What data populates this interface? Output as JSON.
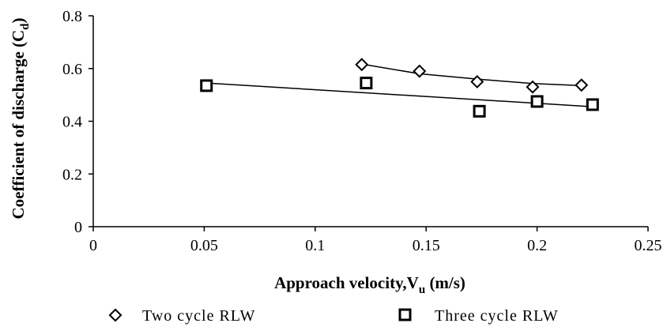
{
  "chart_data": {
    "type": "scatter",
    "xlabel": {
      "main": "Approach velocity,V",
      "sub": "u",
      "unit": " (m/s)"
    },
    "ylabel": {
      "main": "Coefficient of discharge  (C",
      "sub": "d",
      "close": ")"
    },
    "xlim": [
      0,
      0.25
    ],
    "ylim": [
      0,
      0.8
    ],
    "xticks": [
      0,
      0.05,
      0.1,
      0.15,
      0.2,
      0.25
    ],
    "xtick_labels": [
      "0",
      "0.05",
      "0.1",
      "0.15",
      "0.2",
      "0.25"
    ],
    "yticks": [
      0,
      0.2,
      0.4,
      0.6,
      0.8
    ],
    "ytick_labels": [
      "0",
      "0.2",
      "0.4",
      "0.6",
      "0.8"
    ],
    "grid": false,
    "legend_position": "bottom",
    "series": [
      {
        "name": "Two cycle RLW",
        "marker": "diamond",
        "color": "#000000",
        "x": [
          0.121,
          0.147,
          0.173,
          0.198,
          0.22
        ],
        "y": [
          0.615,
          0.59,
          0.55,
          0.53,
          0.537
        ],
        "trendline": "curve",
        "trend_x": [
          0.121,
          0.147,
          0.173,
          0.198,
          0.22
        ],
        "trend_y": [
          0.617,
          0.58,
          0.56,
          0.543,
          0.535
        ]
      },
      {
        "name": "Three cycle RLW",
        "marker": "square",
        "color": "#000000",
        "x": [
          0.051,
          0.123,
          0.174,
          0.2,
          0.225
        ],
        "y": [
          0.535,
          0.545,
          0.438,
          0.475,
          0.463
        ],
        "trendline": "linear",
        "trend_x": [
          0.051,
          0.225
        ],
        "trend_y": [
          0.545,
          0.455
        ]
      }
    ]
  }
}
